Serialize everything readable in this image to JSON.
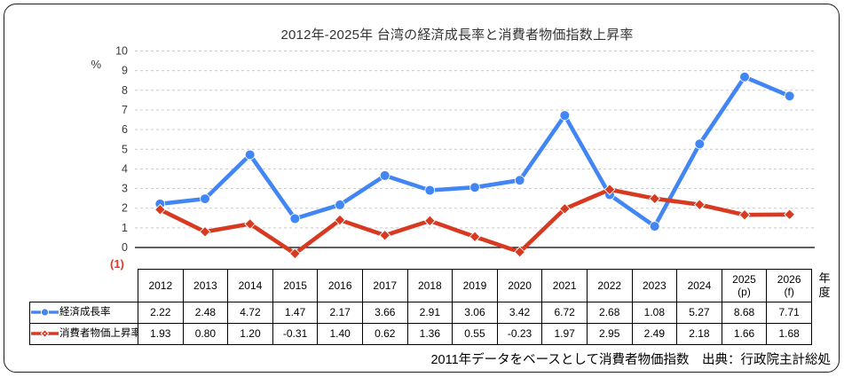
{
  "page": {
    "title": "2012年-2025年 台湾の経済成長率と消費者物価指数上昇率",
    "footnote_marker": "(1)",
    "footnote_color": "#e8362a",
    "footer": "2011年データをベースとして消費者物価指数　出典：行政院主計総処",
    "y_axis_unit": "%",
    "x_axis_unit": "年度"
  },
  "chart_data": {
    "type": "line",
    "title": "2012年-2025年 台湾の経済成長率と消費者物価指数上昇率",
    "categories": [
      "2012",
      "2013",
      "2014",
      "2015",
      "2016",
      "2017",
      "2018",
      "2019",
      "2020",
      "2021",
      "2022",
      "2023",
      "2024",
      "2025 (p)",
      "2026 (f)"
    ],
    "series": [
      {
        "key": "economic-growth-rate",
        "name": "経済成長率",
        "color": "#4285F4",
        "marker": "circle",
        "values": [
          2.22,
          2.48,
          4.72,
          1.47,
          2.17,
          3.66,
          2.91,
          3.06,
          3.42,
          6.72,
          2.68,
          1.08,
          5.27,
          8.68,
          7.71
        ]
      },
      {
        "key": "cpi-inflation-rate",
        "name": "消費者物価上昇率",
        "color": "#D73A20",
        "marker": "diamond",
        "values": [
          1.93,
          0.8,
          1.2,
          -0.31,
          1.4,
          0.62,
          1.36,
          0.55,
          -0.23,
          1.97,
          2.95,
          2.49,
          2.18,
          1.66,
          1.68
        ]
      }
    ],
    "ylabel": "%",
    "ylim": [
      0,
      10
    ],
    "ytick_step": 1,
    "grid": "horizontal-dashed",
    "gridline_color": "#c9c9c9",
    "axis_color": "#000000",
    "legend_position": "table-rows-left"
  },
  "table": {
    "headers": [
      [
        "2012"
      ],
      [
        "2013"
      ],
      [
        "2014"
      ],
      [
        "2015"
      ],
      [
        "2016"
      ],
      [
        "2017"
      ],
      [
        "2018"
      ],
      [
        "2019"
      ],
      [
        "2020"
      ],
      [
        "2021"
      ],
      [
        "2022"
      ],
      [
        "2023"
      ],
      [
        "2024"
      ],
      [
        "2025",
        "(p)"
      ],
      [
        "2026",
        "(f)"
      ]
    ],
    "unit_label": "年度"
  }
}
